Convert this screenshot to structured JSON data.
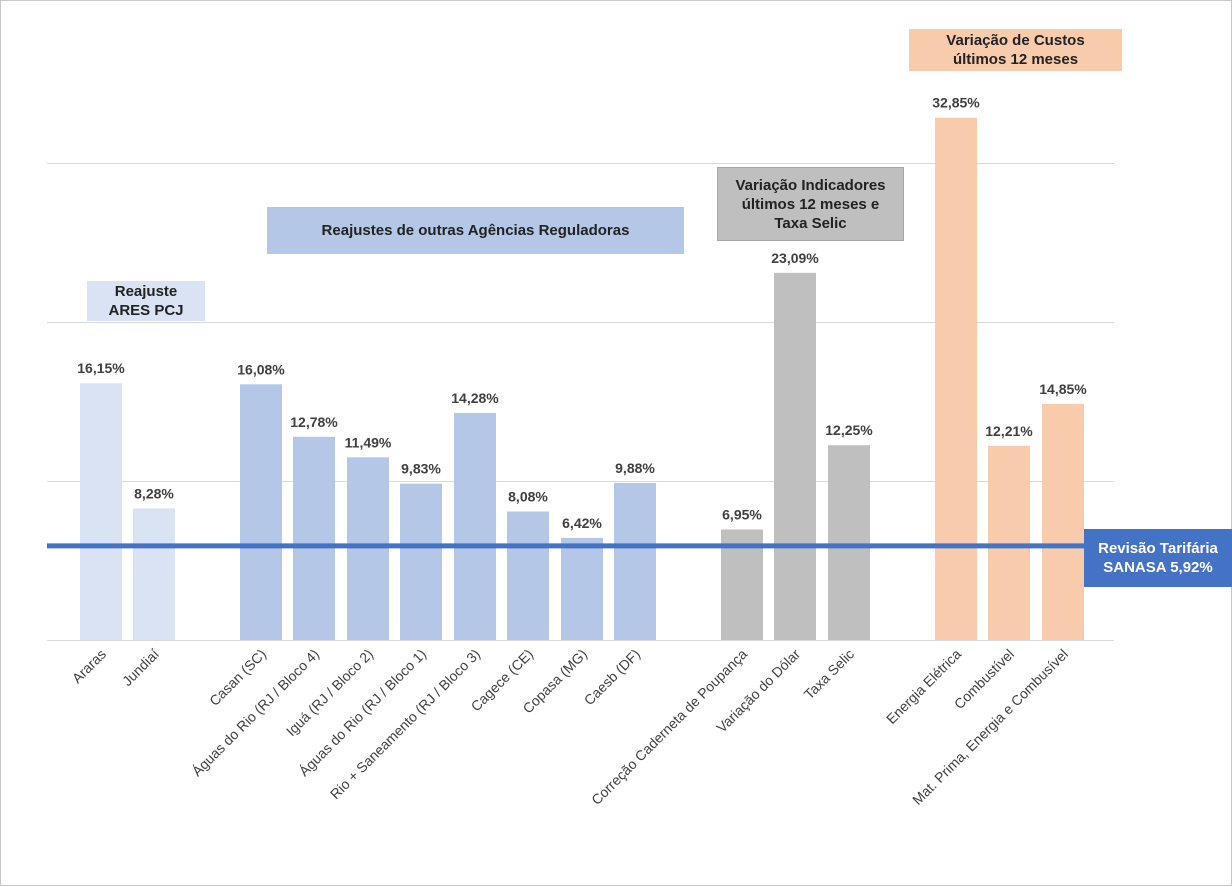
{
  "chart_data": {
    "type": "bar",
    "categories": [
      "Araras",
      "Jundiaí",
      "Casan (SC)",
      "Águas do Rio (RJ / Bloco 4)",
      "Iguá (RJ / Bloco 2)",
      "Águas do Rio (RJ / Bloco 1)",
      "Rio + Saneamento (RJ / Bloco 3)",
      "Cagece (CE)",
      "Copasa (MG)",
      "Caesb (DF)",
      "Correção Caderneta de Poupança",
      "Variação do Dólar",
      "Taxa Selic",
      "Energia Elétrica",
      "Combustível",
      "Mat. Prima, Energia e Combusível"
    ],
    "values": [
      16.15,
      8.28,
      16.08,
      12.78,
      11.49,
      9.83,
      14.28,
      8.08,
      6.42,
      9.88,
      6.95,
      23.09,
      12.25,
      32.85,
      12.21,
      14.85
    ],
    "value_labels": [
      "16,15%",
      "8,28%",
      "16,08%",
      "12,78%",
      "11,49%",
      "9,83%",
      "14,28%",
      "8,08%",
      "6,42%",
      "9,88%",
      "6,95%",
      "23,09%",
      "12,25%",
      "32,85%",
      "12,21%",
      "14,85%"
    ],
    "groups": [
      {
        "label": "Reajuste\nARES PCJ",
        "members": [
          0,
          1
        ],
        "color": "#dae3f3"
      },
      {
        "label": "Reajustes de outras Agências Reguladoras",
        "members": [
          2,
          3,
          4,
          5,
          6,
          7,
          8,
          9
        ],
        "color": "#b4c7e7"
      },
      {
        "label": "Variação Indicadores\núltimos 12 meses e\nTaxa Selic",
        "members": [
          10,
          11,
          12
        ],
        "color": "#bfbfbf"
      },
      {
        "label": "Variação de Custos\núltimos 12 meses",
        "members": [
          13,
          14,
          15
        ],
        "color": "#f8cbad"
      }
    ],
    "reference_line": {
      "value": 5.92,
      "label": "Revisão Tarifária\nSANASA 5,92%",
      "color": "#4472c4"
    },
    "ylim": [
      0,
      40
    ],
    "grid": true,
    "gridline_color": "#d9d9d9",
    "title": "",
    "xlabel": "",
    "ylabel": ""
  }
}
